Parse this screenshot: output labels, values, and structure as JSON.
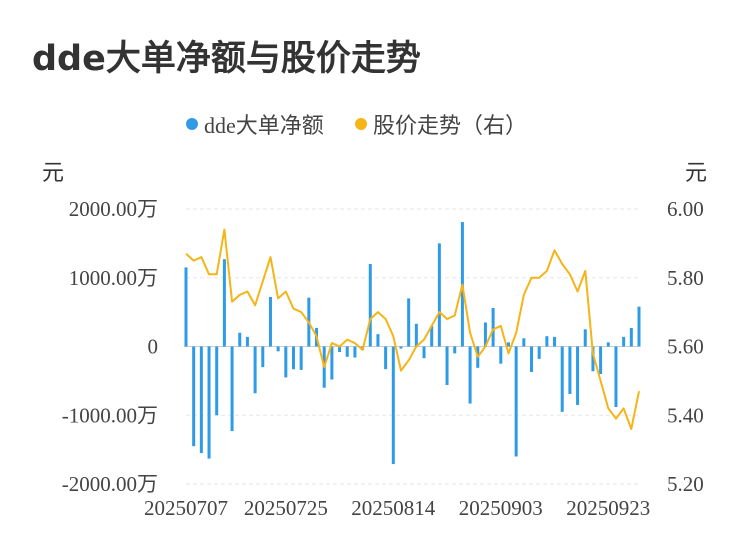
{
  "title": "dde大单净额与股价走势",
  "legend": [
    {
      "name": "dde大单净额",
      "color": "#2E9BE6"
    },
    {
      "name": "股价走势（右）",
      "color": "#F5B417"
    }
  ],
  "left_unit": "元",
  "right_unit": "元",
  "chart_data": {
    "type": "bar+line",
    "title": "dde大单净额与股价走势",
    "x_tick_labels": [
      "20250707",
      "20250725",
      "20250814",
      "20250903",
      "20250923"
    ],
    "x_tick_index": [
      0,
      13,
      27,
      41,
      55
    ],
    "left_axis": {
      "unit": "元",
      "min": -2000,
      "max": 2000,
      "ticks": [
        2000,
        1000,
        0,
        -1000,
        -2000
      ],
      "tick_labels": [
        "2000.00万",
        "1000.00万",
        "0",
        "-1000.00万",
        "-2000.00万"
      ]
    },
    "right_axis": {
      "unit": "元",
      "min": 5.2,
      "max": 6.0,
      "ticks": [
        6.0,
        5.8,
        5.6,
        5.4,
        5.2
      ],
      "tick_labels": [
        "6.00",
        "5.80",
        "5.60",
        "5.40",
        "5.20"
      ]
    },
    "grid": true,
    "legend_position": "top-center",
    "series": [
      {
        "name": "dde大单净额",
        "type": "bar",
        "axis": "left",
        "color": "#2E9BE6",
        "unit": "万元",
        "values": [
          1150,
          -1450,
          -1550,
          -1630,
          -1000,
          1270,
          -1230,
          200,
          140,
          -680,
          -300,
          720,
          -70,
          -450,
          -330,
          -340,
          710,
          270,
          -600,
          -480,
          -80,
          -150,
          -160,
          -50,
          1200,
          180,
          -330,
          -1710,
          -30,
          700,
          330,
          -170,
          300,
          1500,
          -560,
          -100,
          1810,
          -830,
          -310,
          350,
          560,
          -250,
          60,
          -1600,
          120,
          -370,
          -180,
          150,
          140,
          -950,
          -690,
          -850,
          250,
          -360,
          -400,
          60,
          -880,
          140,
          270,
          580
        ]
      },
      {
        "name": "股价走势（右）",
        "type": "line",
        "axis": "right",
        "color": "#F5B417",
        "unit": "元",
        "values": [
          5.87,
          5.85,
          5.86,
          5.81,
          5.81,
          5.94,
          5.73,
          5.75,
          5.76,
          5.72,
          5.79,
          5.86,
          5.74,
          5.76,
          5.71,
          5.7,
          5.67,
          5.63,
          5.54,
          5.61,
          5.6,
          5.62,
          5.61,
          5.59,
          5.68,
          5.7,
          5.68,
          5.63,
          5.53,
          5.56,
          5.6,
          5.62,
          5.66,
          5.7,
          5.68,
          5.69,
          5.78,
          5.64,
          5.57,
          5.6,
          5.65,
          5.66,
          5.58,
          5.64,
          5.75,
          5.8,
          5.8,
          5.82,
          5.88,
          5.84,
          5.81,
          5.76,
          5.82,
          5.58,
          5.5,
          5.42,
          5.39,
          5.42,
          5.36,
          5.47
        ]
      }
    ]
  }
}
